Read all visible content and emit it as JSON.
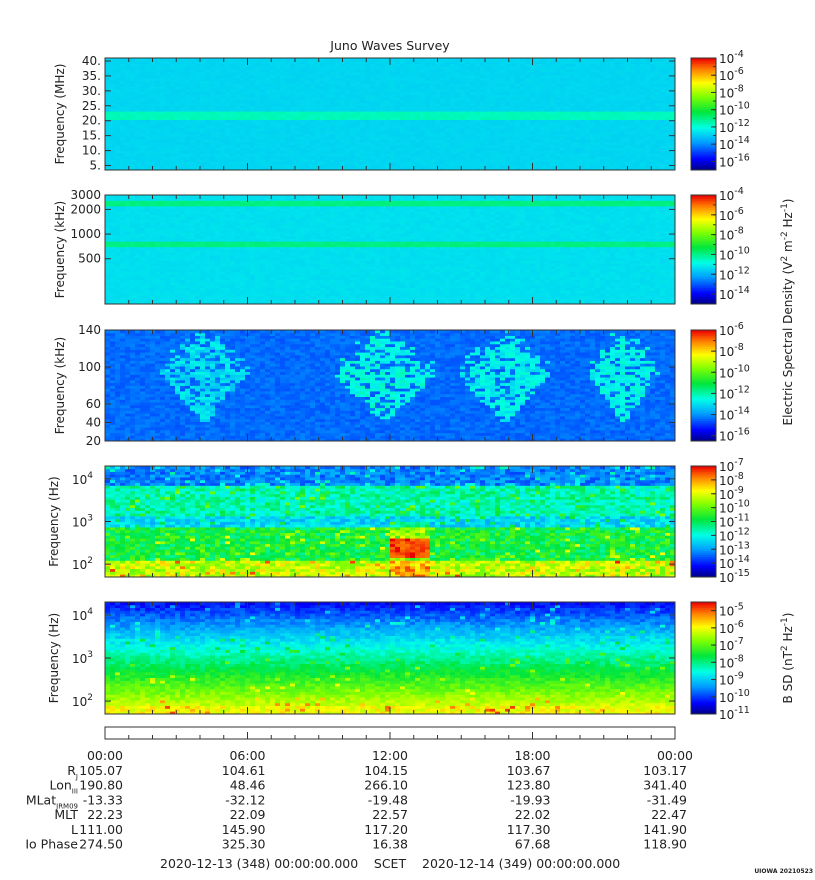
{
  "title": "Juno Waves Survey",
  "signature": "UIOWA 20210523",
  "chart_data": [
    {
      "type": "heatmap",
      "name": "panel-1",
      "ylabel": "Frequency (MHz)",
      "yscale": "linear",
      "ylim": [
        3.5,
        41
      ],
      "yticks": [
        5,
        10,
        15,
        20,
        25,
        30,
        35,
        40
      ],
      "ytick_labels": [
        "5.",
        "10.",
        "15.",
        "20.",
        "25.",
        "30.",
        "35.",
        "40."
      ],
      "colorbar": {
        "range_log10": [
          -17,
          -4
        ],
        "ticks": [
          {
            "value": -4,
            "label_base": "10",
            "label_exp": "-4"
          },
          {
            "value": -6,
            "label_base": "10",
            "label_exp": "-6"
          },
          {
            "value": -8,
            "label_base": "10",
            "label_exp": "-8"
          },
          {
            "value": -10,
            "label_base": "10",
            "label_exp": "-10"
          },
          {
            "value": -12,
            "label_base": "10",
            "label_exp": "-12"
          },
          {
            "value": -14,
            "label_base": "10",
            "label_exp": "-14"
          },
          {
            "value": -16,
            "label_base": "10",
            "label_exp": "-16"
          }
        ]
      },
      "background_log10": -12.8,
      "bands": [
        {
          "center": 21.5,
          "width": 1.6,
          "value": -11.6
        }
      ]
    },
    {
      "type": "heatmap",
      "name": "panel-2",
      "ylabel": "Frequency (kHz)",
      "yscale": "log",
      "ylim": [
        140,
        3000
      ],
      "yticks": [
        500,
        1000,
        2000,
        3000
      ],
      "ytick_labels": [
        "500",
        "1000",
        "2000",
        "3000"
      ],
      "colorbar": {
        "range_log10": [
          -15,
          -4
        ],
        "ticks": [
          {
            "value": -4,
            "label_base": "10",
            "label_exp": "-4"
          },
          {
            "value": -6,
            "label_base": "10",
            "label_exp": "-6"
          },
          {
            "value": -8,
            "label_base": "10",
            "label_exp": "-8"
          },
          {
            "value": -10,
            "label_base": "10",
            "label_exp": "-10"
          },
          {
            "value": -12,
            "label_base": "10",
            "label_exp": "-12"
          },
          {
            "value": -14,
            "label_base": "10",
            "label_exp": "-14"
          }
        ]
      },
      "background_log10": -11.3,
      "bands": [
        {
          "center": 2350,
          "width": 250,
          "value": -9.9
        },
        {
          "center": 760,
          "width": 80,
          "value": -9.9
        }
      ]
    },
    {
      "type": "heatmap",
      "name": "panel-3",
      "ylabel": "Frequency (kHz)",
      "yscale": "linear",
      "ylim": [
        20,
        140
      ],
      "yticks": [
        20,
        40,
        60,
        100,
        140
      ],
      "ytick_labels": [
        "20",
        "40",
        "60",
        "100",
        "140"
      ],
      "colorbar": {
        "range_log10": [
          -16.5,
          -6
        ],
        "ticks": [
          {
            "value": -6,
            "label_base": "10",
            "label_exp": "-6"
          },
          {
            "value": -8,
            "label_base": "10",
            "label_exp": "-8"
          },
          {
            "value": -10,
            "label_base": "10",
            "label_exp": "-10"
          },
          {
            "value": -12,
            "label_base": "10",
            "label_exp": "-12"
          },
          {
            "value": -14,
            "label_base": "10",
            "label_exp": "-14"
          },
          {
            "value": -16,
            "label_base": "10",
            "label_exp": "-16"
          }
        ]
      },
      "background_log10": -14.4,
      "emission_regions": [
        {
          "t_start": 0.1,
          "t_end": 0.25,
          "value": -13.0
        },
        {
          "t_start": 0.4,
          "t_end": 0.58,
          "value": -12.5
        },
        {
          "t_start": 0.62,
          "t_end": 0.78,
          "value": -12.7
        },
        {
          "t_start": 0.85,
          "t_end": 0.97,
          "value": -12.6
        }
      ]
    },
    {
      "type": "heatmap",
      "name": "panel-4",
      "ylabel": "Frequency (Hz)",
      "yscale": "log",
      "ylim": [
        50,
        20000
      ],
      "yticks": [
        100,
        1000,
        10000
      ],
      "ytick_labels": [
        {
          "base": "10",
          "exp": "2"
        },
        {
          "base": "10",
          "exp": "3"
        },
        {
          "base": "10",
          "exp": "4"
        }
      ],
      "colorbar": {
        "range_log10": [
          -15,
          -7
        ],
        "ticks": [
          {
            "value": -7,
            "label_base": "10",
            "label_exp": "-7"
          },
          {
            "value": -8,
            "label_base": "10",
            "label_exp": "-8"
          },
          {
            "value": -9,
            "label_base": "10",
            "label_exp": "-9"
          },
          {
            "value": -10,
            "label_base": "10",
            "label_exp": "-10"
          },
          {
            "value": -11,
            "label_base": "10",
            "label_exp": "-11"
          },
          {
            "value": -12,
            "label_base": "10",
            "label_exp": "-12"
          },
          {
            "value": -13,
            "label_base": "10",
            "label_exp": "-13"
          },
          {
            "value": -14,
            "label_base": "10",
            "label_exp": "-14"
          },
          {
            "value": -15,
            "label_base": "10",
            "label_exp": "-15"
          }
        ]
      },
      "intense_region": {
        "t_start": 0.5,
        "t_end": 0.57,
        "f_low": 150,
        "f_high": 400,
        "value": -7.5
      }
    },
    {
      "type": "heatmap",
      "name": "panel-5",
      "ylabel": "Frequency (Hz)",
      "yscale": "log",
      "ylim": [
        50,
        20000
      ],
      "yticks": [
        100,
        1000,
        10000
      ],
      "ytick_labels": [
        {
          "base": "10",
          "exp": "2"
        },
        {
          "base": "10",
          "exp": "3"
        },
        {
          "base": "10",
          "exp": "4"
        }
      ],
      "colorbar": {
        "range_log10": [
          -11,
          -4.5
        ],
        "ticks": [
          {
            "value": -5,
            "label_base": "10",
            "label_exp": "-5"
          },
          {
            "value": -6,
            "label_base": "10",
            "label_exp": "-6"
          },
          {
            "value": -7,
            "label_base": "10",
            "label_exp": "-7"
          },
          {
            "value": -8,
            "label_base": "10",
            "label_exp": "-8"
          },
          {
            "value": -9,
            "label_base": "10",
            "label_exp": "-9"
          },
          {
            "value": -10,
            "label_base": "10",
            "label_exp": "-10"
          },
          {
            "value": -11,
            "label_base": "10",
            "label_exp": "-11"
          }
        ]
      }
    }
  ],
  "colorbar_titles": {
    "electric": {
      "text": "Electric Spectral Density (V",
      "sup1": "2",
      "mid": " m",
      "sup2": "-2",
      "mid2": " Hz",
      "sup3": "-1",
      "end": ")"
    },
    "magnetic": {
      "text": "B SD (nT",
      "sup1": "2",
      "mid": " Hz",
      "sup2": "-1",
      "end": ")"
    }
  },
  "time_axis": {
    "tick_labels": [
      "00:00",
      "06:00",
      "12:00",
      "18:00",
      "00:00"
    ],
    "start_label": "2020-12-13 (348) 00:00:00.000",
    "center_label": "SCET",
    "end_label": "2020-12-14 (349) 00:00:00.000"
  },
  "ephemeris": [
    {
      "label": "R",
      "sub": "J",
      "values": [
        "105.07",
        "104.61",
        "104.15",
        "103.67",
        "103.17"
      ]
    },
    {
      "label": "Lon",
      "sub": "III",
      "values": [
        "190.80",
        "48.46",
        "266.10",
        "123.80",
        "341.40"
      ]
    },
    {
      "label": "MLat",
      "sub": "JRM09",
      "values": [
        "-13.33",
        "-32.12",
        "-19.48",
        "-19.93",
        "-31.49"
      ]
    },
    {
      "label": "MLT",
      "sub": "",
      "values": [
        "22.23",
        "22.09",
        "22.57",
        "22.02",
        "22.47"
      ]
    },
    {
      "label": "L",
      "sub": "",
      "values": [
        "111.00",
        "145.90",
        "117.20",
        "117.30",
        "141.90"
      ]
    },
    {
      "label": "Io Phase",
      "sub": "",
      "values": [
        "274.50",
        "325.30",
        "16.38",
        "67.68",
        "118.90"
      ]
    }
  ]
}
